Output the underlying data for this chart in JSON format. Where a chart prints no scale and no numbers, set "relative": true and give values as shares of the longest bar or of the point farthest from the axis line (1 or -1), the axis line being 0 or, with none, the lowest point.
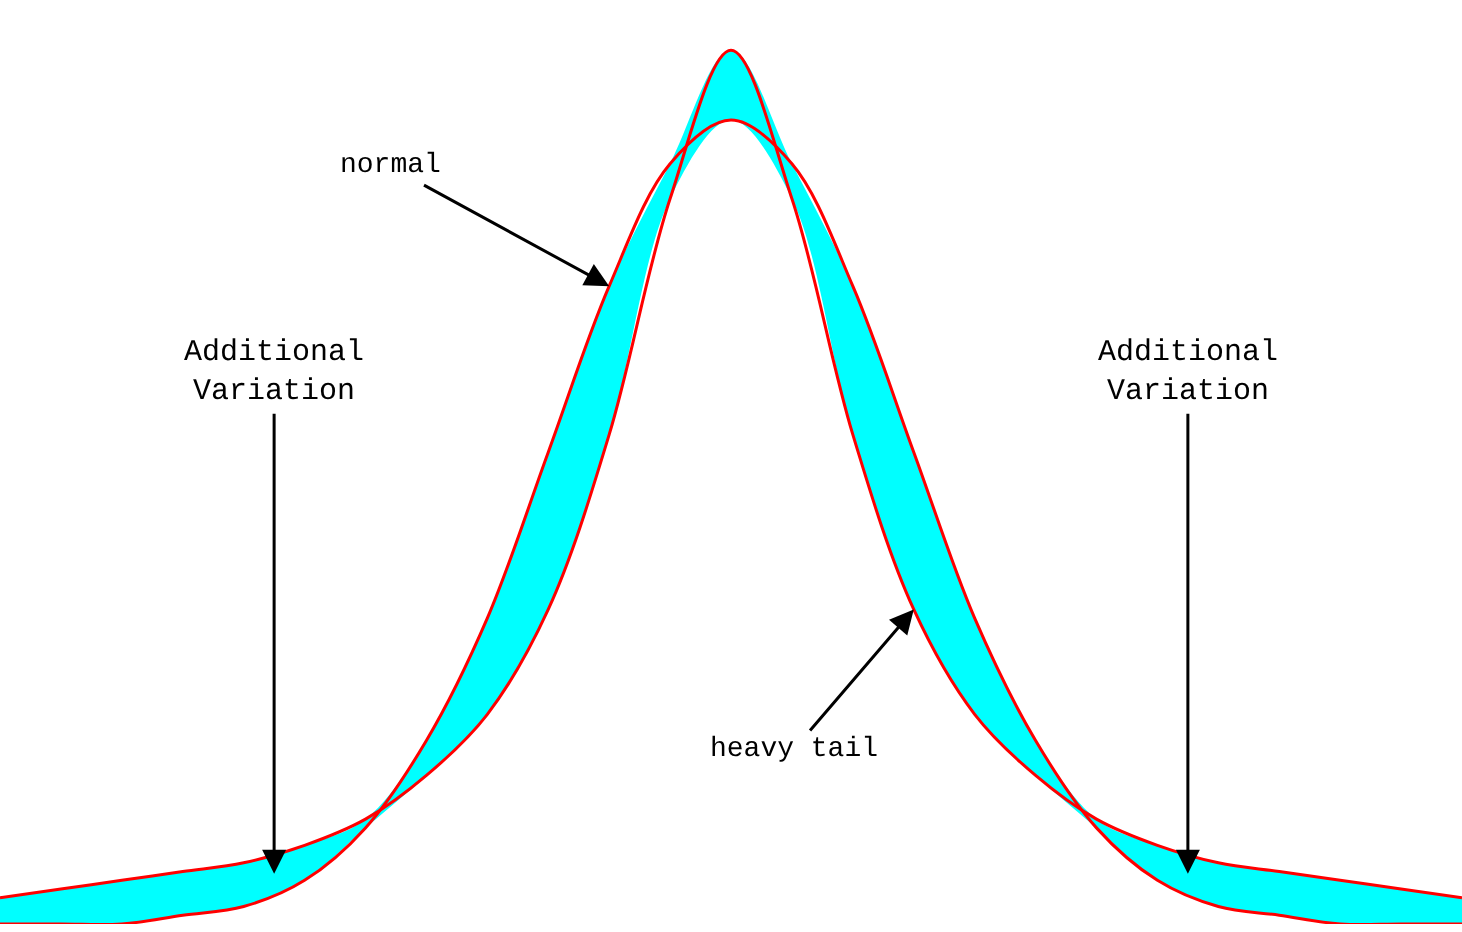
{
  "chart_data": {
    "type": "line",
    "relative": true,
    "legend": false,
    "marker": "none",
    "line_style": "solid",
    "categories": [
      null,
      null,
      null,
      null,
      null,
      null,
      null,
      null,
      null,
      null,
      null,
      null,
      null,
      null,
      null,
      null,
      null,
      null,
      null,
      null,
      null,
      null,
      null,
      null,
      null
    ],
    "series": [
      {
        "color": "#ff0000",
        "values": [
          0,
          0,
          0,
          0.01,
          0.02,
          0.05,
          0.11,
          0.21,
          0.35,
          0.54,
          0.73,
          0.87,
          0.92,
          0.87,
          0.73,
          0.54,
          0.35,
          0.21,
          0.11,
          0.05,
          0.02,
          0.01,
          0,
          0,
          0
        ]
      },
      {
        "color": "#ff0000",
        "values": [
          0.03,
          0.04,
          0.05,
          0.06,
          0.07,
          0.09,
          0.12,
          0.17,
          0.24,
          0.36,
          0.56,
          0.83,
          1,
          0.83,
          0.56,
          0.36,
          0.24,
          0.17,
          0.12,
          0.09,
          0.07,
          0.06,
          0.05,
          0.04,
          0.03
        ],
        "lower": [
          0,
          0,
          0,
          0.01,
          0.02,
          0.05,
          0.11,
          0.17,
          0.24,
          0.36,
          0.56,
          0.83,
          0.92,
          0.83,
          0.56,
          0.36,
          0.24,
          0.17,
          0.11,
          0.05,
          0.02,
          0.01,
          0,
          0,
          0
        ],
        "upper": [
          0.03,
          0.04,
          0.05,
          0.06,
          0.07,
          0.09,
          0.12,
          0.21,
          0.35,
          0.54,
          0.73,
          0.87,
          1,
          0.87,
          0.73,
          0.54,
          0.35,
          0.21,
          0.12,
          0.09,
          0.07,
          0.06,
          0.05,
          0.04,
          0.03
        ]
      }
    ],
    "annotations": [
      "normal",
      "Additional\nVariation",
      "Additional\nVariation",
      "heavy tail"
    ]
  }
}
